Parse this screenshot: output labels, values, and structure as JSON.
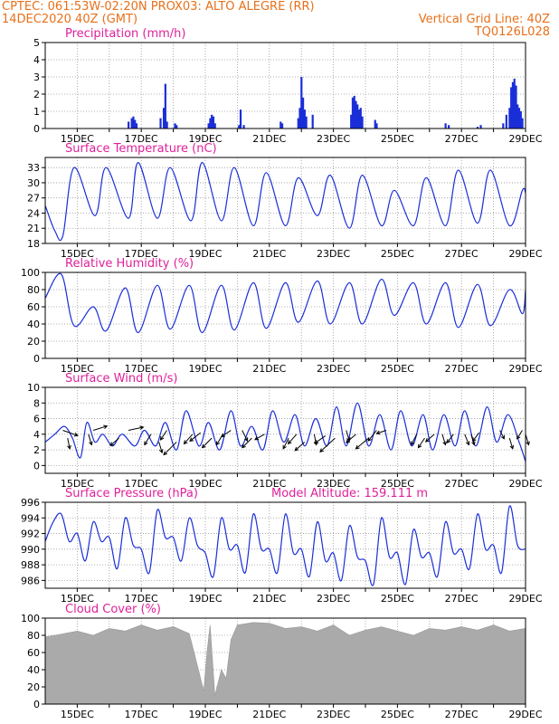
{
  "header": {
    "line1": "CPTEC:   061:53W-02:20N   PROX03: ALTO ALEGRE (RR)",
    "line2_left": "14DEC2020 40Z (GMT)",
    "line2_right": "Vertical Grid Line: 40Z",
    "line3_right": "TQ0126L028"
  },
  "colors": {
    "header": "#e8701a",
    "panel_title": "#e0209a",
    "series_line": "#1a2ed8",
    "precip_bar": "#1a2ed8",
    "wind_arrow": "#000000",
    "cloud_fill": "#aaaaaa",
    "grid": "#999999"
  },
  "x_axis": {
    "tick_labels": [
      "15DEC",
      "17DEC",
      "19DEC",
      "21DEC",
      "23DEC",
      "25DEC",
      "27DEC",
      "29DEC"
    ],
    "tick_days": [
      15,
      17,
      19,
      21,
      23,
      25,
      27,
      29
    ],
    "grid_days": [
      15,
      16,
      17,
      18,
      19,
      20,
      21,
      22,
      23,
      24,
      25,
      26,
      27,
      28,
      29
    ],
    "start_day": 14.0,
    "end_day": 29.0
  },
  "chart_data": [
    {
      "type": "bar",
      "title": "Precipitation (mm/h)",
      "ylim": [
        0,
        5
      ],
      "yticks": [
        0,
        1,
        2,
        3,
        4,
        5
      ],
      "x": [
        16.6,
        16.7,
        16.75,
        16.8,
        16.85,
        17.6,
        17.7,
        17.75,
        17.8,
        18.05,
        18.1,
        19.1,
        19.15,
        19.2,
        19.25,
        19.3,
        20.05,
        20.1,
        20.2,
        21.35,
        21.4,
        21.9,
        21.95,
        22.0,
        22.05,
        22.1,
        22.15,
        22.35,
        23.55,
        23.6,
        23.65,
        23.7,
        23.75,
        23.8,
        23.85,
        23.9,
        24.3,
        24.35,
        26.5,
        26.6,
        27.5,
        27.6,
        28.3,
        28.4,
        28.5,
        28.55,
        28.6,
        28.65,
        28.7,
        28.75,
        28.8,
        28.85,
        28.9
      ],
      "values": [
        0.4,
        0.6,
        0.7,
        0.5,
        0.3,
        0.6,
        1.2,
        2.6,
        0.4,
        0.3,
        0.2,
        0.3,
        0.6,
        0.8,
        0.7,
        0.3,
        0.2,
        1.1,
        0.2,
        0.4,
        0.3,
        0.6,
        1.2,
        3.0,
        1.8,
        1.1,
        0.7,
        0.8,
        0.8,
        1.8,
        1.9,
        1.6,
        1.4,
        1.1,
        1.2,
        0.7,
        0.5,
        0.3,
        0.3,
        0.2,
        0.1,
        0.2,
        0.3,
        0.8,
        1.2,
        2.4,
        2.7,
        2.9,
        2.5,
        1.4,
        1.2,
        1.0,
        0.6
      ]
    },
    {
      "type": "line",
      "title": "Surface Temperature (nC)",
      "ylim": [
        18,
        35
      ],
      "yticks": [
        18,
        21,
        24,
        27,
        30,
        33
      ],
      "x": [
        14.0,
        14.3,
        14.55,
        14.9,
        15.55,
        15.9,
        16.6,
        16.9,
        17.5,
        17.9,
        18.55,
        18.9,
        19.5,
        19.9,
        20.5,
        20.9,
        21.5,
        21.9,
        22.5,
        22.9,
        23.5,
        23.9,
        24.5,
        24.9,
        25.5,
        25.9,
        26.5,
        26.9,
        27.5,
        27.9,
        28.5,
        28.9,
        29.0
      ],
      "values": [
        25.5,
        20.5,
        19.5,
        33.0,
        23.5,
        33.0,
        23.0,
        34.0,
        23.0,
        33.0,
        22.5,
        34.0,
        22.5,
        33.0,
        21.5,
        32.0,
        21.5,
        31.0,
        23.5,
        31.5,
        21.0,
        31.5,
        21.5,
        28.5,
        21.5,
        31.0,
        21.5,
        32.5,
        22.0,
        32.5,
        21.5,
        28.5,
        28.0
      ]
    },
    {
      "type": "line",
      "title": "Relative Humidity (%)",
      "ylim": [
        0,
        100
      ],
      "yticks": [
        0,
        20,
        40,
        60,
        80,
        100
      ],
      "x": [
        14.0,
        14.5,
        14.9,
        15.5,
        15.9,
        16.5,
        16.9,
        17.5,
        17.9,
        18.5,
        18.9,
        19.5,
        19.9,
        20.5,
        20.9,
        21.5,
        21.9,
        22.5,
        22.9,
        23.5,
        23.9,
        24.5,
        24.9,
        25.5,
        25.9,
        26.5,
        26.9,
        27.5,
        27.9,
        28.5,
        28.9,
        29.0
      ],
      "values": [
        70,
        98,
        38,
        60,
        32,
        82,
        30,
        85,
        34,
        85,
        30,
        85,
        33,
        88,
        35,
        88,
        42,
        90,
        40,
        88,
        40,
        92,
        50,
        88,
        40,
        88,
        36,
        86,
        38,
        80,
        52,
        80
      ]
    },
    {
      "type": "line",
      "title": "Surface Wind (m/s)",
      "ylim": [
        -1,
        10
      ],
      "yticks": [
        0,
        2,
        4,
        6,
        8,
        10
      ],
      "x": [
        14.0,
        14.3,
        14.6,
        14.85,
        15.1,
        15.3,
        15.55,
        15.8,
        16.1,
        16.4,
        16.8,
        17.1,
        17.45,
        17.75,
        18.1,
        18.4,
        18.8,
        19.1,
        19.45,
        19.8,
        20.1,
        20.45,
        20.8,
        21.1,
        21.45,
        21.8,
        22.1,
        22.45,
        22.8,
        23.1,
        23.4,
        23.75,
        24.1,
        24.45,
        24.8,
        25.1,
        25.45,
        25.8,
        26.1,
        26.45,
        26.8,
        27.1,
        27.45,
        27.8,
        28.1,
        28.45,
        28.8,
        29.0
      ],
      "values": [
        3.0,
        4.0,
        5.0,
        3.5,
        1.0,
        5.5,
        3.0,
        4.0,
        2.5,
        4.0,
        2.5,
        4.5,
        2.5,
        5.5,
        2.0,
        7.0,
        2.5,
        5.5,
        2.0,
        7.0,
        2.5,
        5.0,
        2.0,
        7.0,
        3.0,
        6.5,
        2.5,
        6.0,
        2.5,
        7.5,
        2.5,
        8.0,
        2.5,
        6.5,
        2.0,
        7.0,
        2.5,
        6.5,
        2.0,
        6.5,
        2.5,
        7.0,
        2.5,
        7.5,
        3.0,
        6.5,
        3.0,
        0.5
      ],
      "vectors": [
        {
          "day": 14.55,
          "speed": 4.5,
          "u": 1.4,
          "v": -0.5
        },
        {
          "day": 14.7,
          "speed": 3.5,
          "u": 0.2,
          "v": -1.0
        },
        {
          "day": 15.35,
          "speed": 4.0,
          "u": 0.3,
          "v": -1.0
        },
        {
          "day": 15.5,
          "speed": 4.5,
          "u": 1.3,
          "v": 0.4
        },
        {
          "day": 16.3,
          "speed": 3.5,
          "u": -0.8,
          "v": -0.7
        },
        {
          "day": 16.6,
          "speed": 4.5,
          "u": 1.4,
          "v": 0.3
        },
        {
          "day": 17.3,
          "speed": 4.0,
          "u": -0.6,
          "v": -1.0
        },
        {
          "day": 17.55,
          "speed": 3.0,
          "u": 0.3,
          "v": -1.0
        },
        {
          "day": 17.8,
          "speed": 4.5,
          "u": -0.6,
          "v": -0.9
        },
        {
          "day": 18.1,
          "speed": 3.0,
          "u": -1.2,
          "v": -1.2
        },
        {
          "day": 18.6,
          "speed": 4.0,
          "u": -0.8,
          "v": -0.9
        },
        {
          "day": 18.85,
          "speed": 4.2,
          "u": -1.0,
          "v": -0.8
        },
        {
          "day": 19.2,
          "speed": 3.5,
          "u": -0.9,
          "v": -0.9
        },
        {
          "day": 19.55,
          "speed": 4.0,
          "u": -0.6,
          "v": -1.0
        },
        {
          "day": 19.8,
          "speed": 4.5,
          "u": -0.9,
          "v": -0.6
        },
        {
          "day": 20.15,
          "speed": 4.5,
          "u": 0.5,
          "v": -1.0
        },
        {
          "day": 20.45,
          "speed": 3.5,
          "u": -0.9,
          "v": -0.9
        },
        {
          "day": 20.85,
          "speed": 4.0,
          "u": -0.9,
          "v": -0.5
        },
        {
          "day": 21.6,
          "speed": 3.5,
          "u": -0.5,
          "v": -1.0
        },
        {
          "day": 21.85,
          "speed": 4.0,
          "u": -0.8,
          "v": -0.9
        },
        {
          "day": 22.1,
          "speed": 3.0,
          "u": -0.9,
          "v": -0.8
        },
        {
          "day": 22.4,
          "speed": 4.0,
          "u": 0.2,
          "v": -1.0
        },
        {
          "day": 22.75,
          "speed": 3.8,
          "u": -1.0,
          "v": -0.7
        },
        {
          "day": 23.05,
          "speed": 3.5,
          "u": -1.4,
          "v": -1.3
        },
        {
          "day": 23.4,
          "speed": 4.5,
          "u": 0.3,
          "v": -1.0
        },
        {
          "day": 23.7,
          "speed": 4.0,
          "u": -0.9,
          "v": -0.8
        },
        {
          "day": 24.1,
          "speed": 3.5,
          "u": -1.2,
          "v": -1.0
        },
        {
          "day": 24.35,
          "speed": 4.5,
          "u": -0.8,
          "v": -1.0
        },
        {
          "day": 24.65,
          "speed": 4.5,
          "u": -0.9,
          "v": -0.3
        },
        {
          "day": 25.6,
          "speed": 4.0,
          "u": -0.5,
          "v": -1.0
        },
        {
          "day": 25.85,
          "speed": 3.5,
          "u": -0.6,
          "v": -0.9
        },
        {
          "day": 26.15,
          "speed": 4.0,
          "u": -0.8,
          "v": -0.7
        },
        {
          "day": 26.4,
          "speed": 4.0,
          "u": 0.3,
          "v": -1.0
        },
        {
          "day": 26.75,
          "speed": 4.0,
          "u": -0.6,
          "v": -0.8
        },
        {
          "day": 27.1,
          "speed": 4.0,
          "u": 0.4,
          "v": -1.0
        },
        {
          "day": 27.3,
          "speed": 4.0,
          "u": 0.3,
          "v": -1.0
        },
        {
          "day": 27.55,
          "speed": 4.2,
          "u": -0.6,
          "v": -0.8
        },
        {
          "day": 28.2,
          "speed": 4.5,
          "u": 0.4,
          "v": -0.8
        },
        {
          "day": 28.5,
          "speed": 3.5,
          "u": 0.3,
          "v": -1.0
        },
        {
          "day": 28.9,
          "speed": 4.5,
          "u": -0.5,
          "v": -0.8
        },
        {
          "day": 29.0,
          "speed": 4.0,
          "u": 0.3,
          "v": -1.0
        }
      ]
    },
    {
      "type": "line",
      "title": "Surface Pressure (hPa)",
      "ylim": [
        985,
        996
      ],
      "yticks": [
        986,
        988,
        990,
        992,
        994,
        996
      ],
      "annotation": "Model Altitude: 159.111 m",
      "x": [
        14.0,
        14.25,
        14.5,
        14.75,
        15.0,
        15.25,
        15.5,
        15.75,
        16.0,
        16.25,
        16.5,
        16.75,
        17.0,
        17.25,
        17.5,
        17.75,
        18.0,
        18.25,
        18.5,
        18.75,
        19.0,
        19.25,
        19.5,
        19.75,
        20.0,
        20.25,
        20.5,
        20.75,
        21.0,
        21.25,
        21.5,
        21.75,
        22.0,
        22.25,
        22.5,
        22.75,
        23.0,
        23.25,
        23.5,
        23.75,
        24.0,
        24.25,
        24.5,
        24.75,
        25.0,
        25.25,
        25.5,
        25.75,
        26.0,
        26.25,
        26.5,
        26.75,
        27.0,
        27.25,
        27.5,
        27.75,
        28.0,
        28.25,
        28.5,
        28.75,
        29.0
      ],
      "values": [
        991.0,
        993.5,
        994.5,
        991.0,
        992.0,
        988.5,
        993.5,
        991.0,
        991.5,
        987.5,
        994.0,
        990.5,
        990.0,
        987.0,
        995.0,
        991.5,
        991.5,
        988.5,
        994.0,
        990.5,
        989.5,
        986.5,
        994.0,
        990.0,
        990.5,
        987.0,
        994.5,
        990.0,
        990.0,
        987.0,
        994.5,
        989.5,
        990.0,
        986.5,
        993.5,
        988.5,
        989.5,
        986.0,
        993.0,
        989.0,
        988.5,
        985.5,
        994.0,
        989.0,
        989.5,
        985.5,
        992.5,
        989.0,
        989.5,
        986.5,
        993.5,
        989.5,
        990.0,
        987.5,
        994.5,
        990.0,
        990.5,
        987.0,
        995.5,
        990.5,
        990.0
      ]
    },
    {
      "type": "area",
      "title": "Cloud Cover (%)",
      "ylim": [
        0,
        100
      ],
      "yticks": [
        0,
        20,
        40,
        60,
        80,
        100
      ],
      "x": [
        14.0,
        14.3,
        14.6,
        15.0,
        15.5,
        16.0,
        16.5,
        17.0,
        17.5,
        18.0,
        18.5,
        18.8,
        18.95,
        19.05,
        19.15,
        19.3,
        19.5,
        19.65,
        19.8,
        20.0,
        20.5,
        21.0,
        21.5,
        22.0,
        22.5,
        23.0,
        23.5,
        24.0,
        24.5,
        25.0,
        25.5,
        26.0,
        26.5,
        27.0,
        27.5,
        28.0,
        28.5,
        29.0
      ],
      "values": [
        78,
        80,
        82,
        85,
        80,
        88,
        85,
        92,
        86,
        90,
        82,
        38,
        15,
        60,
        92,
        10,
        40,
        30,
        75,
        92,
        95,
        94,
        88,
        90,
        85,
        92,
        80,
        86,
        90,
        85,
        80,
        88,
        86,
        90,
        86,
        92,
        85,
        88
      ]
    }
  ]
}
